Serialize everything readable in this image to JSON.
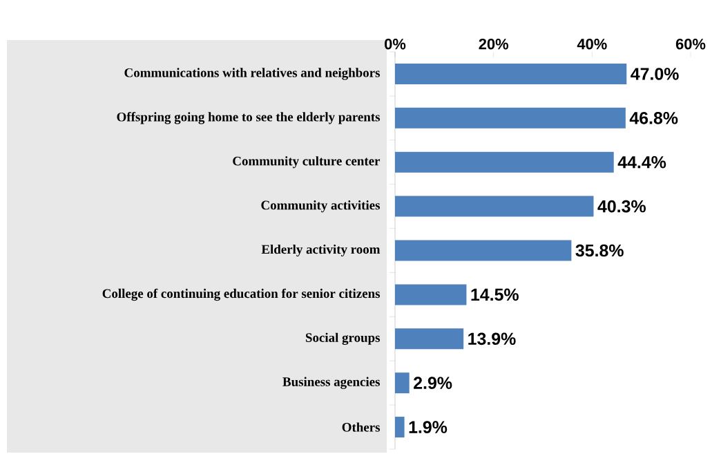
{
  "chart_data": {
    "type": "bar",
    "orientation": "horizontal",
    "categories": [
      "Communications with relatives and neighbors",
      "Offspring going home to see the elderly parents",
      "Community culture center",
      "Community activities",
      "Elderly activity room",
      "College of continuing education for senior citizens",
      "Social groups",
      "Business agencies",
      "Others"
    ],
    "values": [
      47.0,
      46.8,
      44.4,
      40.3,
      35.8,
      14.5,
      13.9,
      2.9,
      1.9
    ],
    "value_labels": [
      "47.0%",
      "46.8%",
      "44.4%",
      "40.3%",
      "35.8%",
      "14.5%",
      "13.9%",
      "2.9%",
      "1.9%"
    ],
    "color": "#4f81bd",
    "xlim": [
      0,
      60
    ],
    "xticks": [
      {
        "value": 0,
        "label": "0%"
      },
      {
        "value": 20,
        "label": "20%"
      },
      {
        "value": 40,
        "label": "40%"
      },
      {
        "value": 60,
        "label": "60%"
      }
    ],
    "grid": false
  }
}
